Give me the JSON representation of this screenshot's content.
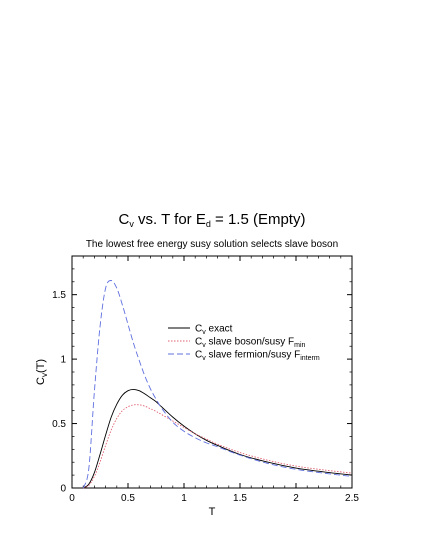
{
  "chart_data": {
    "type": "line",
    "title": {
      "main": "C",
      "sub": "v",
      "rest": " vs. T for E",
      "sub2": "d",
      "tail": " = 1.5 (Empty)"
    },
    "subtitle": "The lowest free energy susy solution selects slave boson",
    "xlabel": "T",
    "ylabel": {
      "main": "C",
      "sub": "v",
      "tail": "(T)"
    },
    "xlim": [
      0,
      2.5
    ],
    "ylim": [
      0,
      1.8
    ],
    "xticks": [
      0,
      0.5,
      1,
      1.5,
      2,
      2.5
    ],
    "xtick_labels": [
      "0",
      "0.5",
      "1",
      "1.5",
      "2",
      "2.5"
    ],
    "yticks": [
      0,
      0.5,
      1,
      1.5
    ],
    "ytick_labels": [
      "0",
      "0.5",
      "1",
      "1.5"
    ],
    "grid": false,
    "legend_position": "center-right",
    "series": [
      {
        "legend": {
          "main": "C",
          "sub": "v",
          "tail": " exact",
          "sub2": "",
          "tail2": ""
        },
        "color": "#000000",
        "dash": "",
        "x": [
          0.1,
          0.15,
          0.2,
          0.25,
          0.3,
          0.35,
          0.4,
          0.45,
          0.5,
          0.55,
          0.6,
          0.65,
          0.7,
          0.75,
          0.8,
          0.9,
          1.0,
          1.1,
          1.2,
          1.3,
          1.5,
          1.75,
          2.0,
          2.25,
          2.5
        ],
        "y": [
          0.0,
          0.03,
          0.12,
          0.26,
          0.41,
          0.55,
          0.65,
          0.72,
          0.755,
          0.765,
          0.755,
          0.73,
          0.7,
          0.67,
          0.63,
          0.55,
          0.48,
          0.42,
          0.37,
          0.33,
          0.26,
          0.2,
          0.155,
          0.125,
          0.1
        ]
      },
      {
        "legend": {
          "main": "C",
          "sub": "v",
          "tail": " slave boson/susy F",
          "sub2": "min",
          "tail2": ""
        },
        "color": "#e06070",
        "dash": "1.5,1.5",
        "x": [
          0.1,
          0.15,
          0.2,
          0.25,
          0.3,
          0.35,
          0.4,
          0.45,
          0.5,
          0.55,
          0.6,
          0.65,
          0.7,
          0.75,
          0.8,
          0.9,
          1.0,
          1.1,
          1.2,
          1.3,
          1.5,
          1.75,
          2.0,
          2.25,
          2.5
        ],
        "y": [
          0.0,
          0.02,
          0.09,
          0.2,
          0.33,
          0.45,
          0.54,
          0.6,
          0.63,
          0.645,
          0.645,
          0.635,
          0.615,
          0.595,
          0.57,
          0.52,
          0.47,
          0.42,
          0.38,
          0.34,
          0.275,
          0.215,
          0.17,
          0.14,
          0.115
        ]
      },
      {
        "legend": {
          "main": "C",
          "sub": "v",
          "tail": " slave fermion/susy F",
          "sub2": "interm",
          "tail2": ""
        },
        "color": "#6070e0",
        "dash": "6,3",
        "x": [
          0.1,
          0.15,
          0.2,
          0.25,
          0.3,
          0.35,
          0.4,
          0.45,
          0.5,
          0.55,
          0.6,
          0.65,
          0.7,
          0.75,
          0.8,
          0.9,
          1.0,
          1.1,
          1.2,
          1.3,
          1.5,
          1.75,
          2.0,
          2.25,
          2.5
        ],
        "y": [
          0.0,
          0.15,
          0.75,
          1.25,
          1.55,
          1.61,
          1.55,
          1.42,
          1.27,
          1.12,
          0.99,
          0.87,
          0.77,
          0.69,
          0.62,
          0.51,
          0.44,
          0.39,
          0.35,
          0.32,
          0.255,
          0.19,
          0.145,
          0.115,
          0.09
        ]
      }
    ]
  }
}
